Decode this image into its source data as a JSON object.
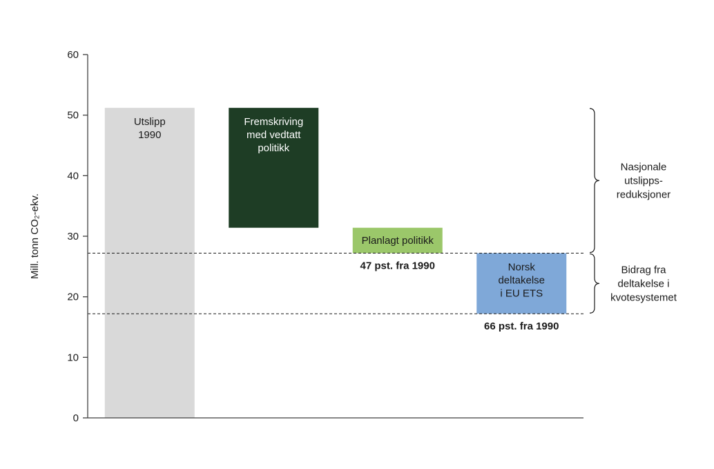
{
  "chart_data": {
    "type": "bar",
    "variant": "waterfall",
    "title": "",
    "xlabel": "",
    "ylabel": "Mill. tonn CO₂-ekv.",
    "ylim": [
      0,
      60
    ],
    "yticks": [
      0,
      10,
      20,
      30,
      40,
      50,
      60
    ],
    "grid": false,
    "legend": "none",
    "bars": [
      {
        "id": "utslipp-1990",
        "label_lines": [
          "Utslipp",
          "1990"
        ],
        "from": 0,
        "to": 51.2,
        "color": "#d9d9d9",
        "text_color": "#1a1a1a",
        "label_pos": "top",
        "annotation": ""
      },
      {
        "id": "fremskriving-med-vedtatt-politikk",
        "label_lines": [
          "Fremskriving",
          "med vedtatt",
          "politikk"
        ],
        "from": 31.4,
        "to": 51.2,
        "color": "#1e3d25",
        "text_color": "#ffffff",
        "label_pos": "top",
        "annotation": ""
      },
      {
        "id": "planlagt-politikk",
        "label_lines": [
          "Planlagt politikk"
        ],
        "from": 27.2,
        "to": 31.4,
        "color": "#9bc76a",
        "text_color": "#1a1a1a",
        "label_pos": "center",
        "annotation": "47 pst. fra 1990"
      },
      {
        "id": "norsk-deltakelse-i-eu-ets",
        "label_lines": [
          "Norsk",
          "deltakelse",
          "i EU ETS"
        ],
        "from": 17.2,
        "to": 27.2,
        "color": "#7fa8d8",
        "text_color": "#1a1a1a",
        "label_pos": "top",
        "annotation": "66  pst. fra 1990"
      }
    ],
    "dashed_lines": [
      27.2,
      17.2
    ],
    "braces": [
      {
        "from": 27.2,
        "to": 51.2,
        "label_lines": [
          "Nasjonale",
          "utslipps-",
          "reduksjoner"
        ]
      },
      {
        "from": 17.2,
        "to": 27.2,
        "label_lines": [
          "Bidrag fra",
          "deltakelse i",
          "kvotesystemet"
        ]
      }
    ],
    "colors": {
      "axis": "#3f3f3f",
      "text": "#1a1a1a",
      "dashed_line": "#1a1a1a",
      "background": "#ffffff"
    }
  }
}
